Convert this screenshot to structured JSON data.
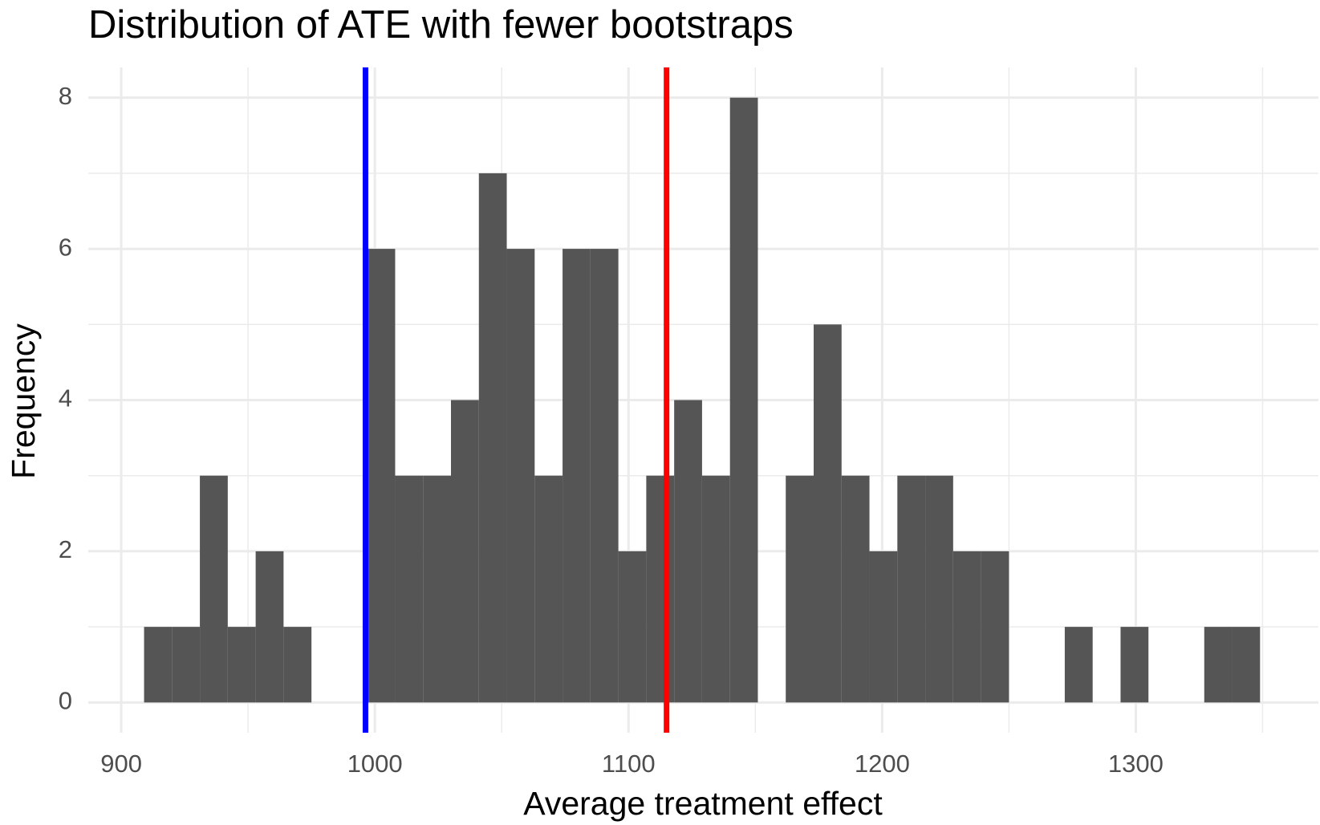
{
  "chart_data": {
    "type": "histogram",
    "title": "Distribution of ATE with fewer bootstraps",
    "x_label": "Average treatment effect",
    "y_label": "Frequency",
    "bins": [
      909,
      920,
      931,
      942,
      953,
      964,
      975,
      986,
      997,
      1008,
      1019,
      1030,
      1041,
      1052,
      1063,
      1074,
      1085,
      1096,
      1107,
      1118,
      1129,
      1140,
      1151,
      1162,
      1173,
      1184,
      1195,
      1206,
      1217,
      1228,
      1239,
      1250,
      1261,
      1272,
      1283,
      1294,
      1305,
      1316,
      1327,
      1338,
      1349
    ],
    "values": [
      1,
      1,
      3,
      1,
      2,
      1,
      0,
      0,
      6,
      3,
      3,
      4,
      7,
      6,
      3,
      6,
      6,
      2,
      3,
      4,
      3,
      8,
      0,
      3,
      5,
      3,
      2,
      3,
      3,
      2,
      2,
      0,
      0,
      1,
      0,
      1,
      0,
      0,
      1,
      1
    ],
    "color": "#555555",
    "vlines": [
      {
        "value": 996.3,
        "color": "#0000ff"
      },
      {
        "value": 1115,
        "color": "#ff0000"
      }
    ],
    "xlim": [
      887,
      1372
    ],
    "ylim": [
      -0.4,
      8.4
    ],
    "xticks": [
      900,
      1000,
      1100,
      1200,
      1300
    ],
    "yticks": [
      0,
      2,
      4,
      6,
      8
    ],
    "x_minor_grid": [
      950,
      1050,
      1150,
      1250,
      1350
    ],
    "y_minor_grid": [
      1,
      3,
      5,
      7
    ],
    "grid": true
  }
}
